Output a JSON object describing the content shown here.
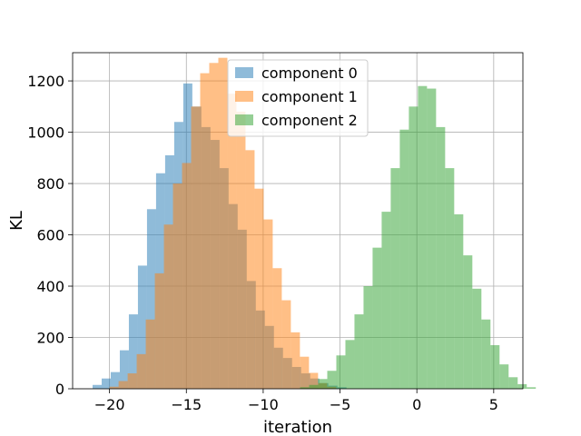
{
  "chart_data": {
    "type": "histogram",
    "title": "",
    "xlabel": "iteration",
    "ylabel": "KL",
    "xlim": [
      -22.4,
      6.9
    ],
    "ylim": [
      0,
      1310
    ],
    "xticks": [
      -20,
      -15,
      -10,
      -5,
      0,
      5
    ],
    "xtick_labels": [
      "−20",
      "−15",
      "−10",
      "−5",
      "0",
      "5"
    ],
    "yticks": [
      0,
      200,
      400,
      600,
      800,
      1000,
      1200
    ],
    "ytick_labels": [
      "0",
      "200",
      "400",
      "600",
      "800",
      "1000",
      "1200"
    ],
    "grid": true,
    "legend_position": "top-center",
    "series": [
      {
        "name": "component 0",
        "color": "#1f77b4",
        "alpha": 0.5,
        "bin_start": -21.1,
        "bin_width": 0.59,
        "counts": [
          15,
          40,
          65,
          150,
          290,
          480,
          700,
          840,
          910,
          1040,
          1190,
          1100,
          1020,
          970,
          860,
          720,
          620,
          420,
          305,
          245,
          160,
          120,
          85,
          60,
          40,
          22,
          12,
          6
        ]
      },
      {
        "name": "component 1",
        "color": "#ff7f0e",
        "alpha": 0.5,
        "bin_start": -20.0,
        "bin_width": 0.59,
        "counts": [
          8,
          30,
          60,
          135,
          270,
          450,
          640,
          800,
          880,
          1100,
          1230,
          1270,
          1290,
          1150,
          1080,
          930,
          780,
          660,
          470,
          345,
          220,
          125,
          62,
          22,
          8
        ]
      },
      {
        "name": "component 2",
        "color": "#2ca02c",
        "alpha": 0.5,
        "bin_start": -7.6,
        "bin_width": 0.59,
        "counts": [
          6,
          15,
          38,
          70,
          130,
          190,
          290,
          400,
          550,
          690,
          860,
          1010,
          1100,
          1180,
          1170,
          1020,
          860,
          680,
          520,
          390,
          270,
          170,
          95,
          45,
          18,
          6
        ]
      }
    ]
  }
}
